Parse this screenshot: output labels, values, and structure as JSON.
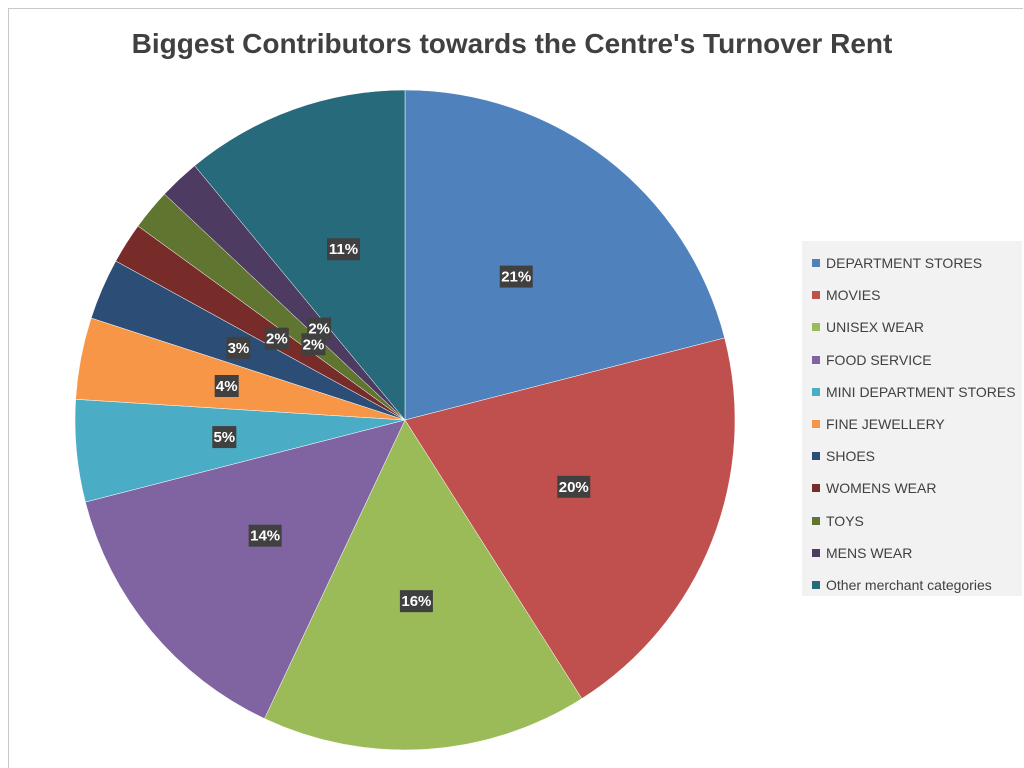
{
  "chart_data": {
    "type": "pie",
    "title": "Biggest Contributors towards the Centre's Turnover Rent",
    "legend_position": "right",
    "categories": [
      "DEPARTMENT STORES",
      "MOVIES",
      "UNISEX WEAR",
      "FOOD SERVICE",
      "MINI DEPARTMENT STORES",
      "FINE JEWELLERY",
      "SHOES",
      "WOMENS WEAR",
      "TOYS",
      "MENS WEAR",
      "Other merchant categories"
    ],
    "values": [
      21,
      20,
      16,
      14,
      5,
      4,
      3,
      2,
      2,
      2,
      11
    ],
    "labels": [
      "21%",
      "20%",
      "16%",
      "14%",
      "5%",
      "4%",
      "3%",
      "2%",
      "2%",
      "2%",
      "11%"
    ],
    "colors": [
      "#4f81bd",
      "#c0504d",
      "#9bbb59",
      "#8064a2",
      "#4bacc6",
      "#f79646",
      "#2c4d75",
      "#772c2a",
      "#5f7530",
      "#4d3b62",
      "#276a7c"
    ]
  }
}
